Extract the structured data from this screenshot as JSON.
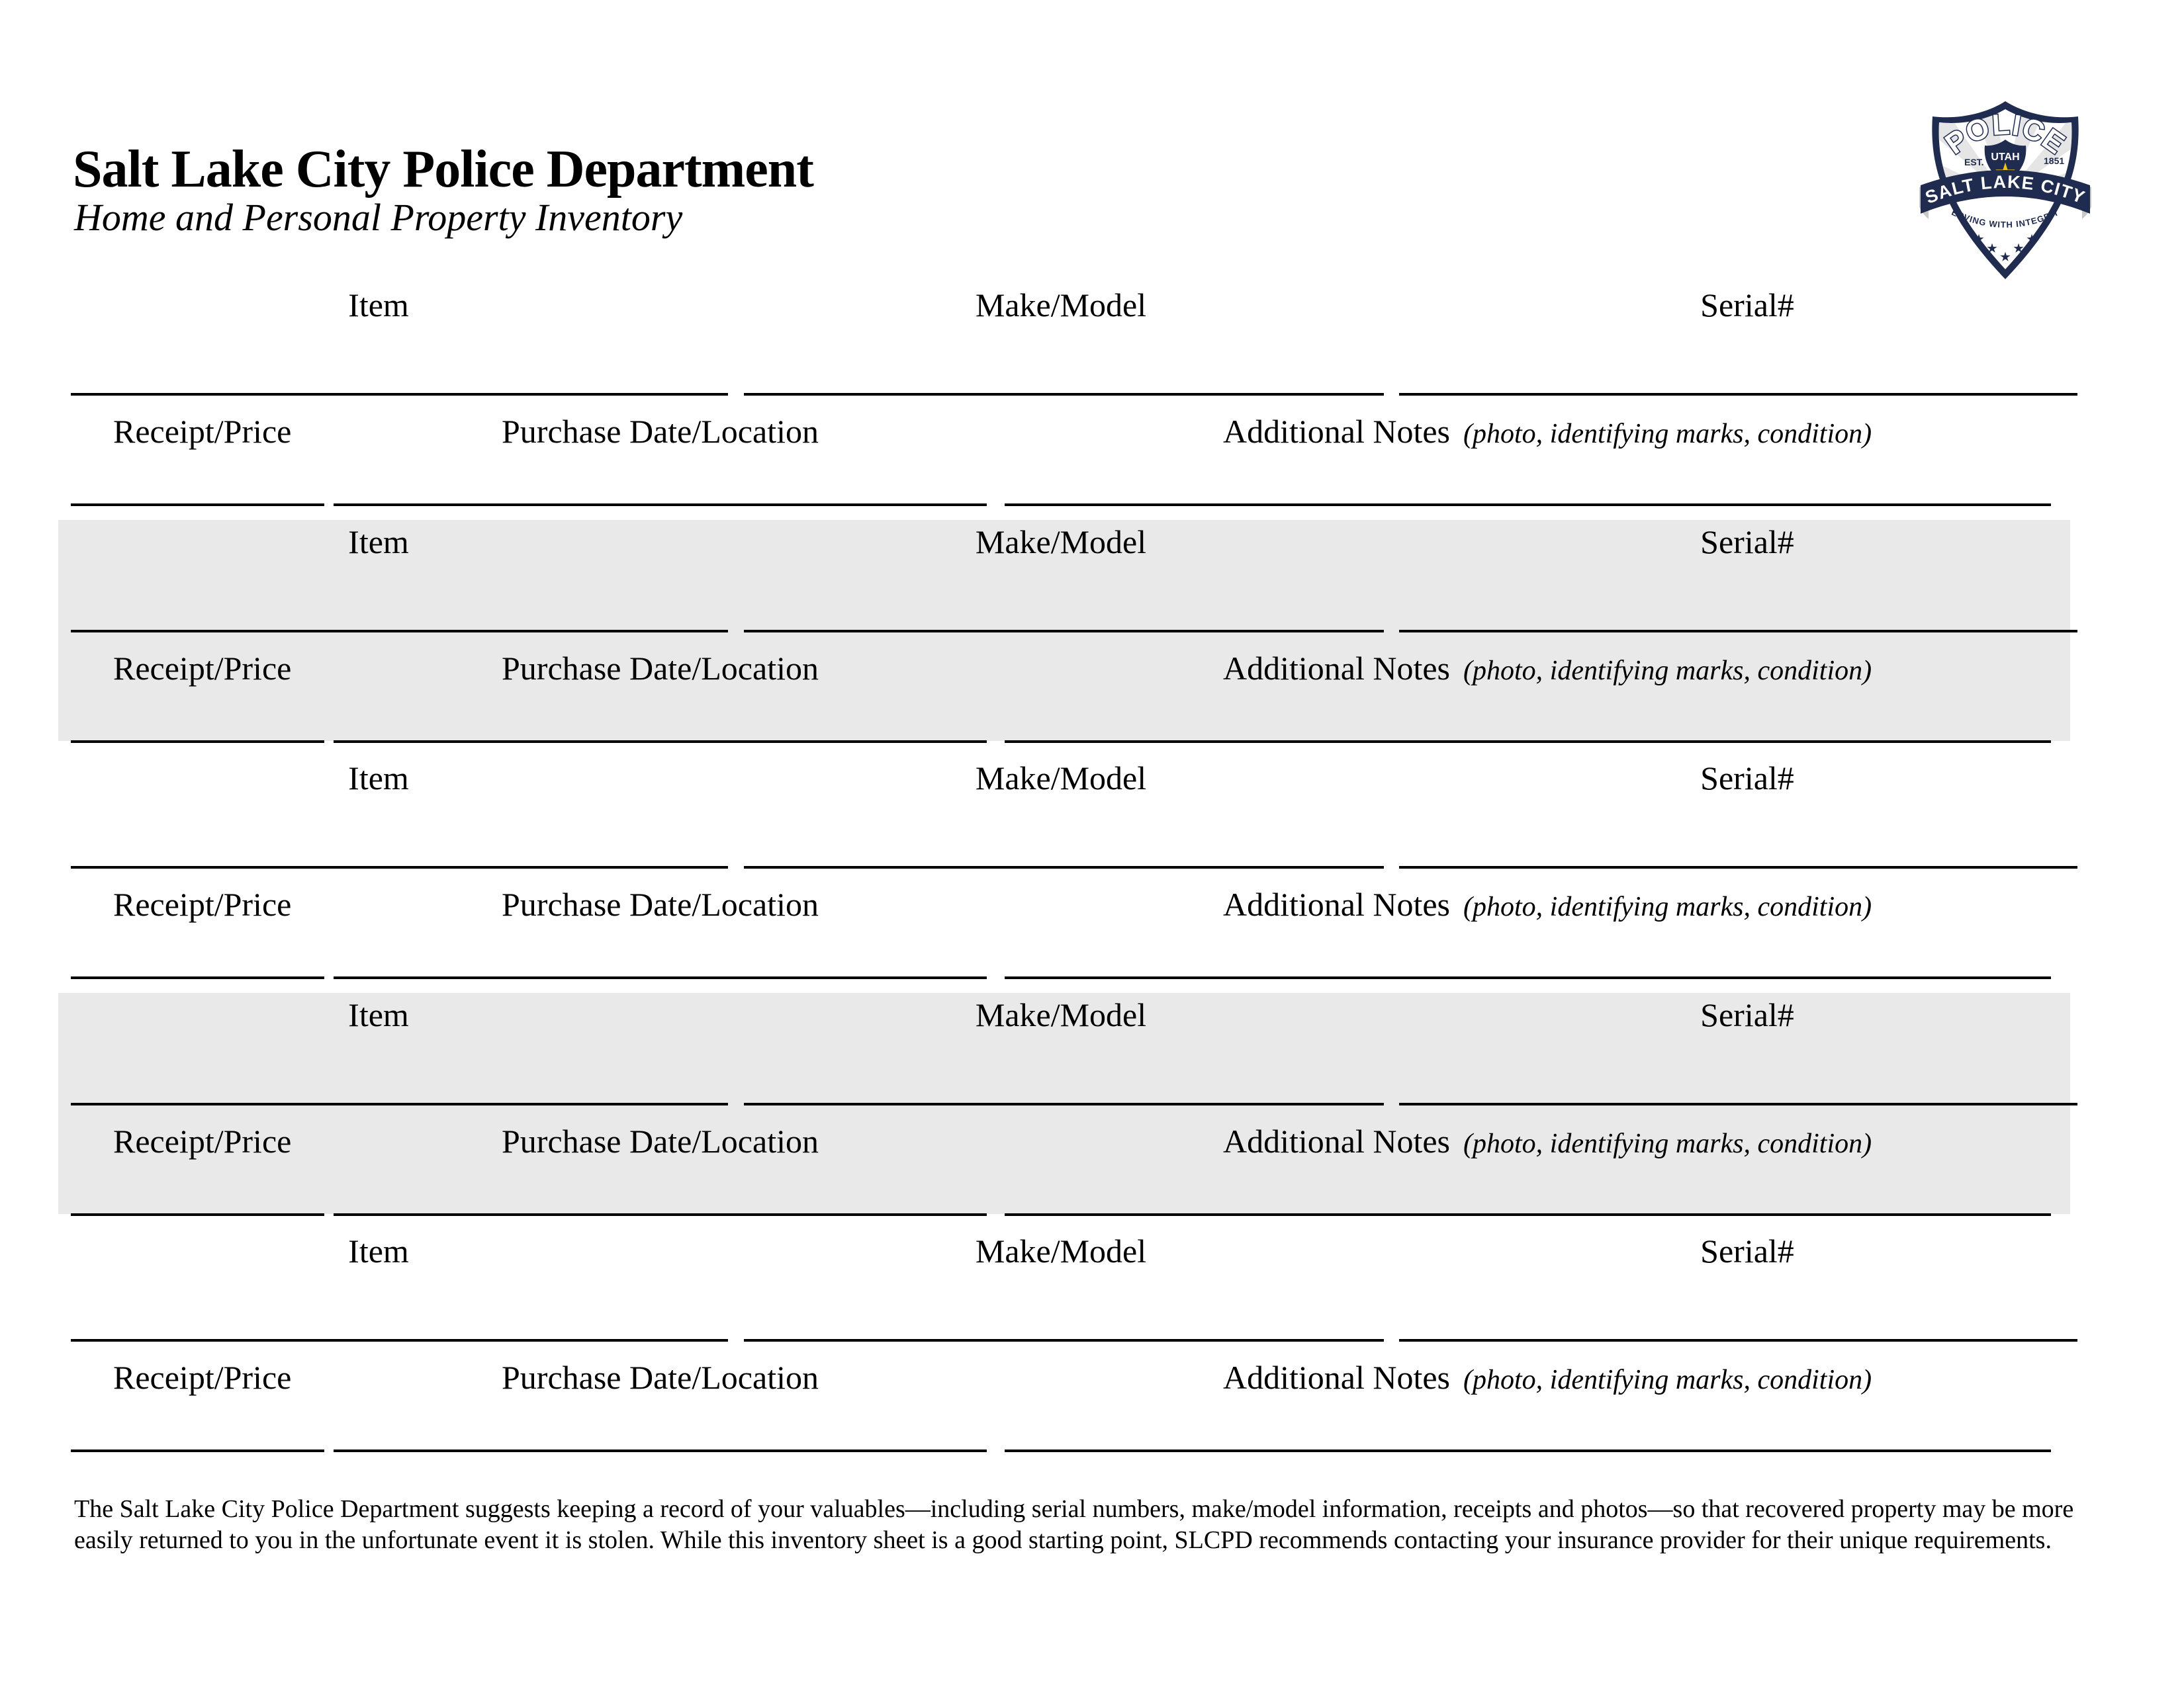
{
  "header": {
    "title": "Salt Lake City Police Department",
    "subtitle": "Home and Personal Property Inventory"
  },
  "badge": {
    "police": "POLICE",
    "utah": "UTAH",
    "est": "EST.",
    "year": "1851",
    "city": "SALT LAKE CITY",
    "motto": "SERVING WITH INTEGRITY",
    "navy": "#1f2b4f",
    "gold": "#f2c119",
    "ray_gray": "#dcdcdc"
  },
  "labels": {
    "item": "Item",
    "make_model": "Make/Model",
    "serial": "Serial#",
    "receipt_price": "Receipt/Price",
    "purchase": "Purchase Date/Location",
    "notes": "Additional Notes",
    "notes_hint": "(photo, identifying marks, condition)"
  },
  "blocks": [
    {
      "shaded": false
    },
    {
      "shaded": true
    },
    {
      "shaded": false
    },
    {
      "shaded": true
    },
    {
      "shaded": false
    }
  ],
  "footer": {
    "lines": [
      "The Salt Lake City Police Department suggests keeping a record of your valuables—including serial numbers, make/model information, receipts and photos—so that recovered property may be more",
      "easily returned to you in the unfortunate event it is stolen. While this inventory sheet is a good starting point, SLCPD recommends contacting your insurance provider for their unique requirements."
    ]
  },
  "colors": {
    "shade": "#e9e9e9",
    "line": "#000000"
  }
}
